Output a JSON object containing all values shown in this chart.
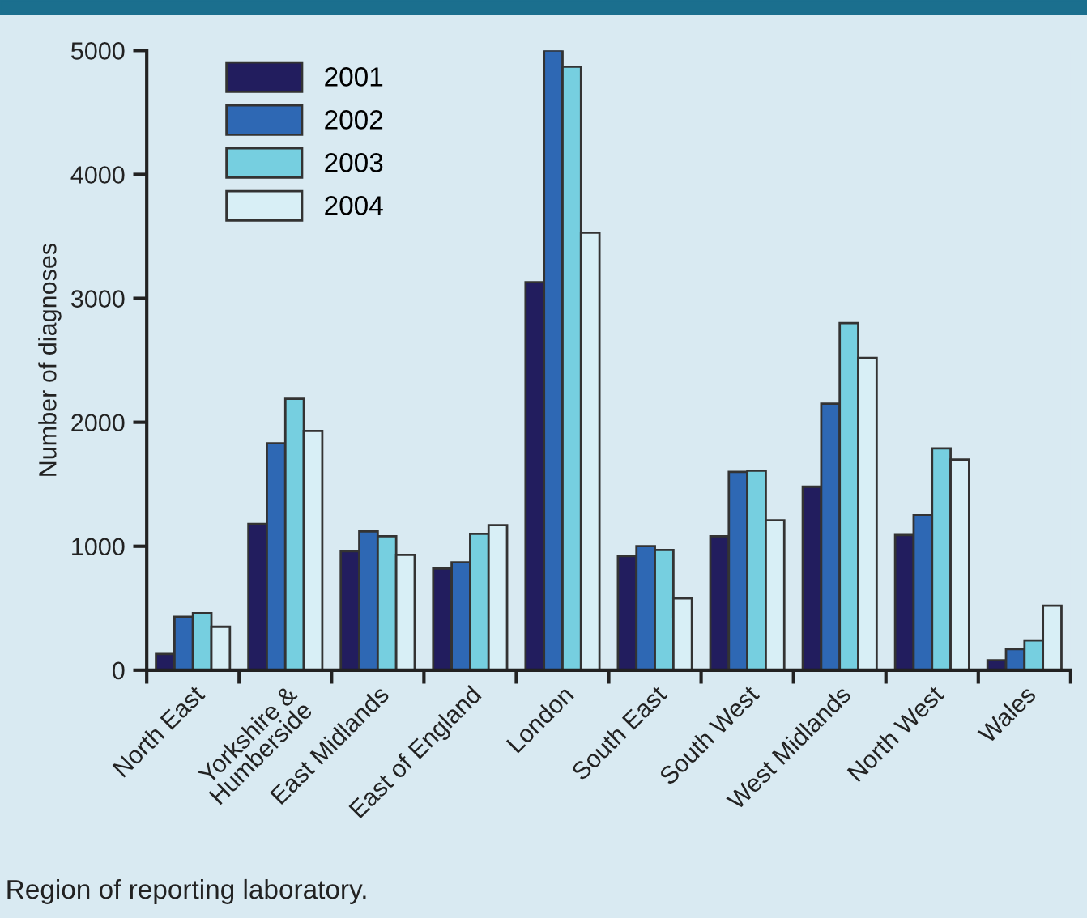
{
  "chart_data": {
    "type": "bar",
    "ylabel": "Number of diagnoses",
    "categories": [
      "North East",
      "Yorkshire &\nHumberside",
      "East Midlands",
      "East of England",
      "London",
      "South East",
      "South West",
      "West Midlands",
      "North West",
      "Wales"
    ],
    "series": [
      {
        "name": "2001",
        "color": "#221d5e",
        "values": [
          130,
          1180,
          960,
          820,
          3130,
          920,
          1080,
          1480,
          1090,
          80
        ]
      },
      {
        "name": "2002",
        "color": "#2e68b4",
        "values": [
          430,
          1830,
          1120,
          870,
          5000,
          1000,
          1600,
          2150,
          1250,
          170
        ]
      },
      {
        "name": "2003",
        "color": "#76cfe0",
        "values": [
          460,
          2190,
          1080,
          1100,
          4870,
          970,
          1610,
          2800,
          1790,
          240
        ]
      },
      {
        "name": "2004",
        "color": "#d8eff6",
        "values": [
          350,
          1930,
          930,
          1170,
          3530,
          580,
          1210,
          2520,
          1700,
          520
        ]
      }
    ],
    "ylim": [
      0,
      5000
    ],
    "yticks": [
      0,
      1000,
      2000,
      3000,
      4000,
      5000
    ],
    "grid": false,
    "legend": "top left",
    "annotations": [
      "Region of reporting laboratory."
    ]
  }
}
